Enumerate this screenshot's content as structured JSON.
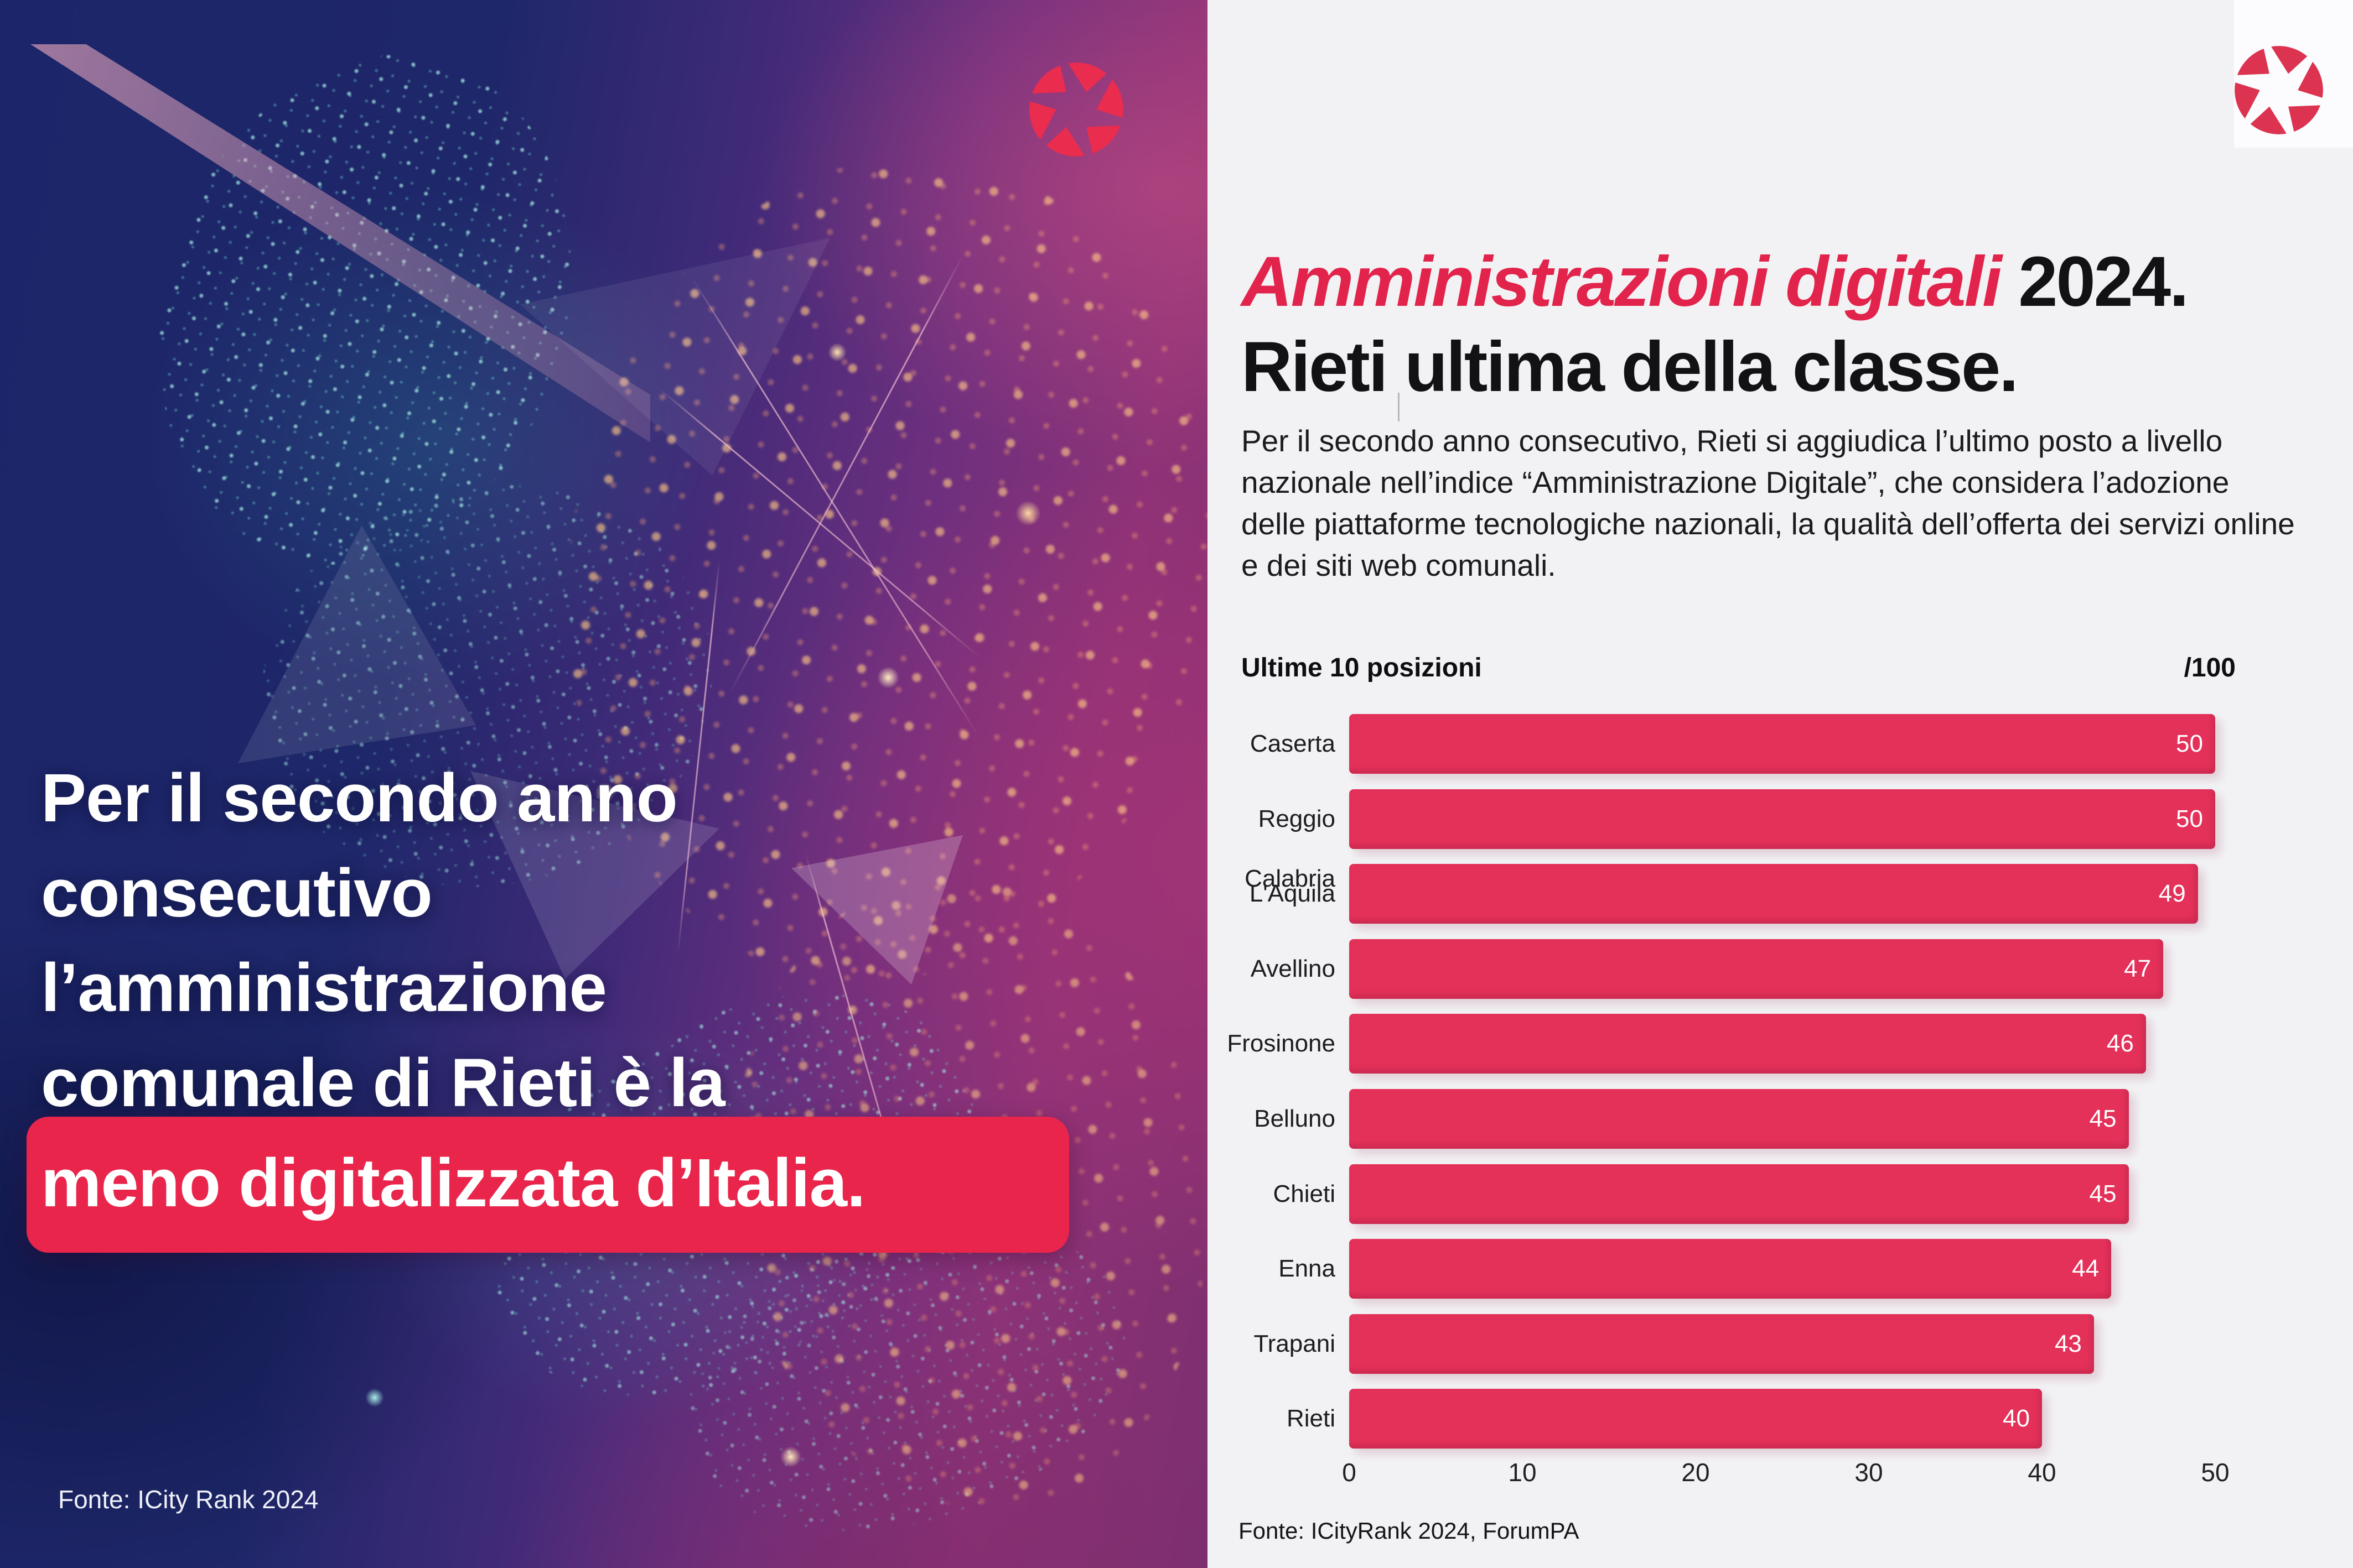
{
  "brand": {
    "logo_icon": "aperture-shutter-icon",
    "logo_color": "#e02a4c",
    "accent_color": "#e2234c",
    "bar_color": "#e4315a",
    "highlight_color": "#e9254c",
    "right_bg_color": "#f2f2f4"
  },
  "left_panel": {
    "headline_lines": [
      "Per il secondo anno",
      "consecutivo",
      "l’amministrazione",
      "comunale di Rieti è la"
    ],
    "headline_highlight": "meno digitalizzata d’Italia.",
    "source": "Fonte: ICity Rank 2024"
  },
  "right_panel": {
    "title_accent": "Amministrazioni digitali",
    "title_rest": " 2024.",
    "title_line2": "Rieti ultima della classe.",
    "paragraph": "Per il secondo anno consecutivo, Rieti si aggiudica l’ultimo posto a livello nazionale nell’indice “Amministrazione Digitale”, che considera l’adozione delle piattaforme tecnologiche nazionali, la qualità dell’offerta dei servizi online e dei siti web comunali.",
    "source": "Fonte: ICityRank 2024, ForumPA"
  },
  "chart_data": {
    "type": "bar",
    "orientation": "horizontal",
    "title": "Ultime 10 posizioni",
    "scale_note": "/100",
    "categories": [
      "Caserta",
      "Reggio Calabria",
      "L'Aquila",
      "Avellino",
      "Frosinone",
      "Belluno",
      "Chieti",
      "Enna",
      "Trapani",
      "Rieti"
    ],
    "values": [
      50,
      50,
      49,
      47,
      46,
      45,
      45,
      44,
      43,
      40
    ],
    "xlim": [
      0,
      50
    ],
    "xticks": [
      0,
      10,
      20,
      30,
      40,
      50
    ],
    "grid": false,
    "legend": false,
    "bar_color": "#e4315a",
    "value_label_color": "#ffffff"
  }
}
